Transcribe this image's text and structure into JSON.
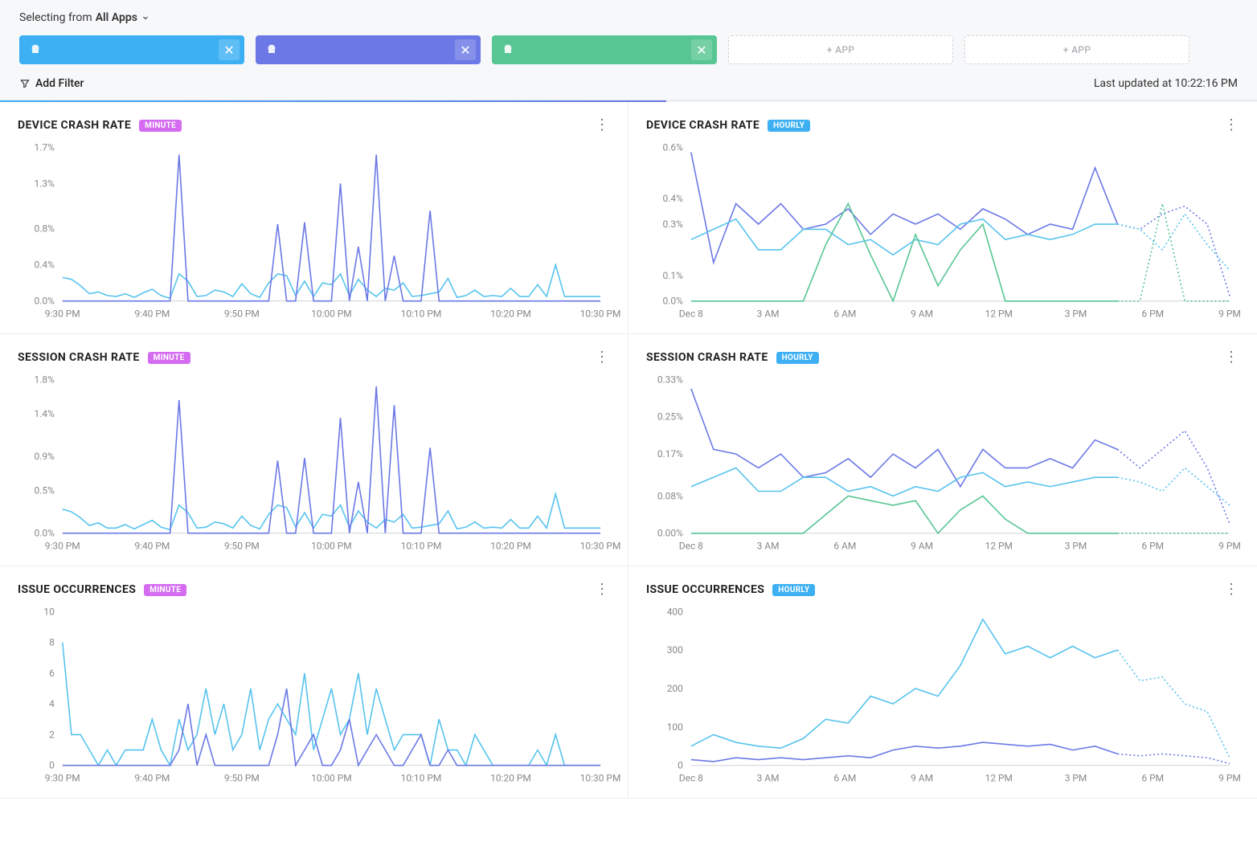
{
  "header": {
    "selecting_prefix": "Selecting from",
    "selecting_value": "All Apps",
    "chips": [
      {
        "label": "",
        "bg": "#3db0f4"
      },
      {
        "label": "",
        "bg": "#6b78e6"
      },
      {
        "label": "",
        "bg": "#57c693"
      }
    ],
    "add_chip_label": "+ APP",
    "add_filter_label": "Add Filter",
    "last_updated_prefix": "Last updated at",
    "last_updated_time": "10:22:16 PM"
  },
  "badges": {
    "minute": {
      "text": "MINUTE",
      "bg": "#d46bf0"
    },
    "hourly": {
      "text": "HOURLY",
      "bg": "#3db0f4"
    }
  },
  "colors": {
    "series_blue": "#3db0f4",
    "series_cyan": "#56c3ee",
    "series_purple": "#6b78e6",
    "series_green": "#57c693",
    "axis": "#888888",
    "baseline": "#cfd2d8"
  },
  "tiles": [
    {
      "title": "DEVICE CRASH RATE",
      "badge": "minute",
      "y": {
        "min": 0,
        "max": 1.7,
        "ticks": [
          0.0,
          0.4,
          0.8,
          1.3,
          1.7
        ],
        "fmt": "pct1"
      },
      "x": {
        "labels": [
          "9:30 PM",
          "9:40 PM",
          "9:50 PM",
          "10:00 PM",
          "10:10 PM",
          "10:20 PM",
          "10:30 PM"
        ],
        "points": 61
      },
      "series": [
        {
          "color": "series_cyan",
          "dash": false,
          "values": [
            0.26,
            0.24,
            0.17,
            0.08,
            0.1,
            0.06,
            0.05,
            0.08,
            0.04,
            0.09,
            0.13,
            0.06,
            0.03,
            0.3,
            0.22,
            0.05,
            0.06,
            0.12,
            0.1,
            0.05,
            0.19,
            0.08,
            0.04,
            0.2,
            0.3,
            0.28,
            0.06,
            0.22,
            0.05,
            0.2,
            0.18,
            0.3,
            0.06,
            0.24,
            0.12,
            0.05,
            0.14,
            0.12,
            0.2,
            0.05,
            0.06,
            0.08,
            0.1,
            0.25,
            0.04,
            0.06,
            0.12,
            0.05,
            0.06,
            0.05,
            0.14,
            0.05,
            0.05,
            0.18,
            0.05,
            0.4,
            0.05,
            0.05,
            0.05,
            0.05,
            0.05
          ]
        },
        {
          "color": "series_purple",
          "dash": false,
          "values": [
            0.0,
            0.0,
            0.0,
            0.0,
            0.0,
            0.0,
            0.0,
            0.0,
            0.0,
            0.0,
            0.0,
            0.0,
            0.0,
            1.62,
            0.0,
            0.0,
            0.0,
            0.0,
            0.0,
            0.0,
            0.0,
            0.0,
            0.0,
            0.0,
            0.85,
            0.0,
            0.0,
            0.87,
            0.0,
            0.0,
            0.0,
            1.3,
            0.0,
            0.6,
            0.0,
            1.62,
            0.0,
            0.5,
            0.0,
            0.0,
            0.0,
            1.0,
            0.0,
            0.0,
            0.0,
            0.0,
            0.0,
            0.0,
            0.0,
            0.0,
            0.0,
            0.0,
            0.0,
            0.0,
            0.0,
            0.0,
            0.0,
            0.0,
            0.0,
            0.0,
            0.0
          ]
        }
      ]
    },
    {
      "title": "DEVICE CRASH RATE",
      "badge": "hourly",
      "y": {
        "min": 0,
        "max": 0.6,
        "ticks": [
          0.0,
          0.1,
          0.3,
          0.4,
          0.6
        ],
        "fmt": "pct1"
      },
      "x": {
        "labels": [
          "Dec 8",
          "3 AM",
          "6 AM",
          "9 AM",
          "12 PM",
          "3 PM",
          "6 PM",
          "9 PM"
        ],
        "points": 25
      },
      "series": [
        {
          "color": "series_purple",
          "dash": false,
          "cutoff": 19,
          "values": [
            0.58,
            0.15,
            0.38,
            0.3,
            0.38,
            0.28,
            0.3,
            0.36,
            0.26,
            0.34,
            0.3,
            0.34,
            0.28,
            0.36,
            0.32,
            0.26,
            0.3,
            0.28,
            0.52,
            0.3,
            0.28,
            0.34,
            0.37,
            0.3,
            0.02
          ]
        },
        {
          "color": "series_cyan",
          "dash": false,
          "cutoff": 19,
          "values": [
            0.24,
            0.28,
            0.32,
            0.2,
            0.2,
            0.28,
            0.28,
            0.22,
            0.24,
            0.18,
            0.24,
            0.22,
            0.3,
            0.32,
            0.24,
            0.26,
            0.24,
            0.26,
            0.3,
            0.3,
            0.28,
            0.2,
            0.34,
            0.22,
            0.12
          ]
        },
        {
          "color": "series_green",
          "dash": false,
          "cutoff": 19,
          "values": [
            0.0,
            0.0,
            0.0,
            0.0,
            0.0,
            0.0,
            0.22,
            0.38,
            0.18,
            0.0,
            0.26,
            0.06,
            0.2,
            0.3,
            0.0,
            0.0,
            0.0,
            0.0,
            0.0,
            0.0,
            0.0,
            0.38,
            0.0,
            0.0,
            0.0
          ]
        }
      ]
    },
    {
      "title": "SESSION CRASH RATE",
      "badge": "minute",
      "y": {
        "min": 0,
        "max": 1.8,
        "ticks": [
          0.0,
          0.5,
          0.9,
          1.4,
          1.8
        ],
        "fmt": "pct1"
      },
      "x": {
        "labels": [
          "9:30 PM",
          "9:40 PM",
          "9:50 PM",
          "10:00 PM",
          "10:10 PM",
          "10:20 PM",
          "10:30 PM"
        ],
        "points": 61
      },
      "series": [
        {
          "color": "series_cyan",
          "dash": false,
          "values": [
            0.28,
            0.25,
            0.18,
            0.09,
            0.12,
            0.06,
            0.06,
            0.1,
            0.05,
            0.1,
            0.15,
            0.07,
            0.04,
            0.33,
            0.24,
            0.06,
            0.07,
            0.13,
            0.11,
            0.06,
            0.2,
            0.09,
            0.05,
            0.22,
            0.33,
            0.3,
            0.07,
            0.24,
            0.06,
            0.22,
            0.2,
            0.33,
            0.07,
            0.26,
            0.13,
            0.06,
            0.16,
            0.13,
            0.22,
            0.06,
            0.07,
            0.09,
            0.11,
            0.26,
            0.05,
            0.07,
            0.13,
            0.06,
            0.07,
            0.06,
            0.16,
            0.06,
            0.06,
            0.2,
            0.06,
            0.46,
            0.06,
            0.06,
            0.06,
            0.06,
            0.06
          ]
        },
        {
          "color": "series_purple",
          "dash": false,
          "values": [
            0.0,
            0.0,
            0.0,
            0.0,
            0.0,
            0.0,
            0.0,
            0.0,
            0.0,
            0.0,
            0.0,
            0.0,
            0.0,
            1.56,
            0.0,
            0.0,
            0.0,
            0.0,
            0.0,
            0.0,
            0.0,
            0.0,
            0.0,
            0.0,
            0.85,
            0.0,
            0.0,
            0.88,
            0.0,
            0.0,
            0.0,
            1.35,
            0.0,
            0.6,
            0.0,
            1.72,
            0.0,
            1.5,
            0.0,
            0.0,
            0.0,
            1.0,
            0.0,
            0.0,
            0.0,
            0.0,
            0.0,
            0.0,
            0.0,
            0.0,
            0.0,
            0.0,
            0.0,
            0.0,
            0.0,
            0.0,
            0.0,
            0.0,
            0.0,
            0.0,
            0.0
          ]
        }
      ]
    },
    {
      "title": "SESSION CRASH RATE",
      "badge": "hourly",
      "y": {
        "min": 0,
        "max": 0.33,
        "ticks": [
          0.0,
          0.08,
          0.17,
          0.25,
          0.33
        ],
        "fmt": "pct2"
      },
      "x": {
        "labels": [
          "Dec 8",
          "3 AM",
          "6 AM",
          "9 AM",
          "12 PM",
          "3 PM",
          "6 PM",
          "9 PM"
        ],
        "points": 25
      },
      "series": [
        {
          "color": "series_purple",
          "dash": false,
          "cutoff": 19,
          "values": [
            0.31,
            0.18,
            0.17,
            0.14,
            0.17,
            0.12,
            0.13,
            0.16,
            0.12,
            0.17,
            0.14,
            0.18,
            0.1,
            0.18,
            0.14,
            0.14,
            0.16,
            0.14,
            0.2,
            0.18,
            0.14,
            0.18,
            0.22,
            0.14,
            0.02
          ]
        },
        {
          "color": "series_cyan",
          "dash": false,
          "cutoff": 19,
          "values": [
            0.1,
            0.12,
            0.14,
            0.09,
            0.09,
            0.12,
            0.12,
            0.09,
            0.1,
            0.08,
            0.1,
            0.09,
            0.12,
            0.13,
            0.1,
            0.11,
            0.1,
            0.11,
            0.12,
            0.12,
            0.11,
            0.09,
            0.14,
            0.1,
            0.06
          ]
        },
        {
          "color": "series_green",
          "dash": false,
          "cutoff": 19,
          "values": [
            0.0,
            0.0,
            0.0,
            0.0,
            0.0,
            0.0,
            0.04,
            0.08,
            0.07,
            0.06,
            0.07,
            0.0,
            0.05,
            0.08,
            0.03,
            0.0,
            0.0,
            0.0,
            0.0,
            0.0,
            0.0,
            0.0,
            0.0,
            0.0,
            0.0
          ]
        }
      ]
    },
    {
      "title": "ISSUE OCCURRENCES",
      "badge": "minute",
      "y": {
        "min": 0,
        "max": 10,
        "ticks": [
          0,
          2,
          4,
          6,
          8,
          10
        ],
        "fmt": "int"
      },
      "x": {
        "labels": [
          "9:30 PM",
          "9:40 PM",
          "9:50 PM",
          "10:00 PM",
          "10:10 PM",
          "10:20 PM",
          "10:30 PM"
        ],
        "points": 61
      },
      "series": [
        {
          "color": "series_cyan",
          "dash": false,
          "values": [
            8,
            2,
            2,
            1,
            0,
            1,
            0,
            1,
            1,
            1,
            3,
            1,
            0,
            3,
            1,
            2,
            5,
            2,
            4,
            1,
            2,
            5,
            1,
            3,
            4,
            3,
            2,
            6,
            1,
            3,
            5,
            2,
            3,
            6,
            2,
            5,
            3,
            1,
            2,
            2,
            2,
            0,
            3,
            1,
            1,
            0,
            2,
            1,
            0,
            0,
            0,
            0,
            0,
            1,
            0,
            2,
            0,
            0,
            0,
            0,
            0
          ]
        },
        {
          "color": "series_purple",
          "dash": false,
          "values": [
            0,
            0,
            0,
            0,
            0,
            0,
            0,
            0,
            0,
            0,
            0,
            0,
            0,
            1,
            4,
            0,
            2,
            0,
            0,
            0,
            0,
            0,
            0,
            0,
            2,
            5,
            0,
            1,
            2,
            0,
            0,
            1,
            3,
            0,
            1,
            2,
            1,
            0,
            0,
            1,
            2,
            0,
            0,
            1,
            0,
            0,
            0,
            0,
            0,
            0,
            0,
            0,
            0,
            0,
            0,
            0,
            0,
            0,
            0,
            0,
            0
          ]
        }
      ]
    },
    {
      "title": "ISSUE OCCURRENCES",
      "badge": "hourly",
      "y": {
        "min": 0,
        "max": 400,
        "ticks": [
          0,
          100,
          200,
          300,
          400
        ],
        "fmt": "int"
      },
      "x": {
        "labels": [
          "Dec 8",
          "3 AM",
          "6 AM",
          "9 AM",
          "12 PM",
          "3 PM",
          "6 PM",
          "9 PM"
        ],
        "points": 25
      },
      "series": [
        {
          "color": "series_cyan",
          "dash": false,
          "cutoff": 19,
          "values": [
            50,
            80,
            60,
            50,
            45,
            70,
            120,
            110,
            180,
            160,
            200,
            180,
            260,
            380,
            290,
            310,
            280,
            310,
            280,
            300,
            220,
            230,
            160,
            140,
            20
          ]
        },
        {
          "color": "series_purple",
          "dash": false,
          "cutoff": 19,
          "values": [
            15,
            10,
            20,
            15,
            20,
            15,
            20,
            25,
            20,
            40,
            50,
            45,
            50,
            60,
            55,
            50,
            55,
            40,
            50,
            30,
            25,
            30,
            25,
            20,
            5
          ]
        }
      ]
    }
  ]
}
